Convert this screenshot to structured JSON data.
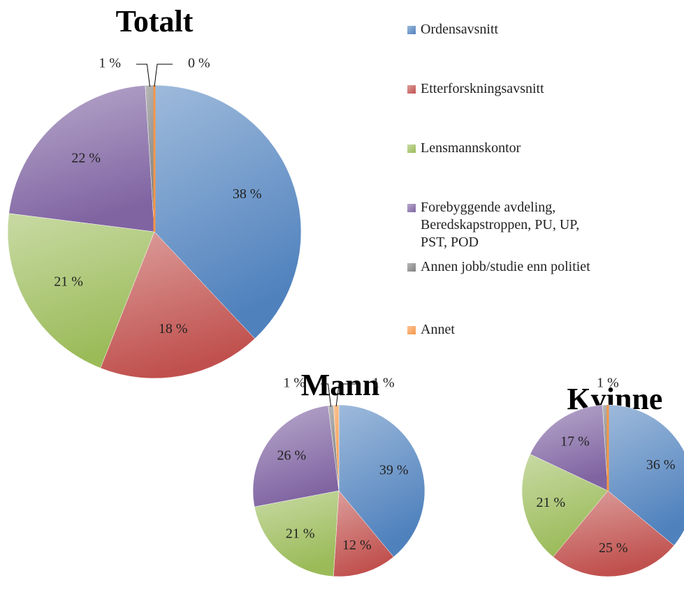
{
  "chart_data": [
    {
      "type": "pie",
      "title": "Totalt",
      "categories": [
        "Ordensavsnitt",
        "Etterforskningsavsnitt",
        "Lensmannskontor",
        "Forebyggende avdeling, Beredskapstroppen, PU, UP, PST, POD",
        "Annen jobb/studie enn politiet",
        "Annet"
      ],
      "values": [
        38,
        18,
        21,
        22,
        1,
        0
      ],
      "value_labels": [
        "38 %",
        "18 %",
        "21 %",
        "22 %",
        "1 %",
        "0 %"
      ],
      "colors": [
        "#4f81bd",
        "#c0504d",
        "#9bbb59",
        "#8064a2",
        "#7f7f7f",
        "#f79646"
      ]
    },
    {
      "type": "pie",
      "title": "Mann",
      "categories": [
        "Ordensavsnitt",
        "Etterforskningsavsnitt",
        "Lensmannskontor",
        "Forebyggende avdeling, Beredskapstroppen, PU, UP, PST, POD",
        "Annen jobb/studie enn politiet",
        "Annet"
      ],
      "values": [
        39,
        12,
        21,
        26,
        1,
        1
      ],
      "value_labels": [
        "39 %",
        "12 %",
        "21 %",
        "26 %",
        "1 %",
        "1 %"
      ],
      "colors": [
        "#4f81bd",
        "#c0504d",
        "#9bbb59",
        "#8064a2",
        "#7f7f7f",
        "#f79646"
      ]
    },
    {
      "type": "pie",
      "title": "Kvinne",
      "categories": [
        "Ordensavsnitt",
        "Etterforskningsavsnitt",
        "Lensmannskontor",
        "Forebyggende avdeling, Beredskapstroppen, PU, UP, PST, POD",
        "Annen jobb/studie enn politiet",
        "Annet"
      ],
      "values": [
        36,
        25,
        21,
        17,
        1,
        0
      ],
      "value_labels": [
        "36 %",
        "25 %",
        "21 %",
        "17 %",
        "1 %",
        null
      ],
      "colors": [
        "#4f81bd",
        "#c0504d",
        "#9bbb59",
        "#8064a2",
        "#7f7f7f",
        "#f79646"
      ]
    }
  ]
}
